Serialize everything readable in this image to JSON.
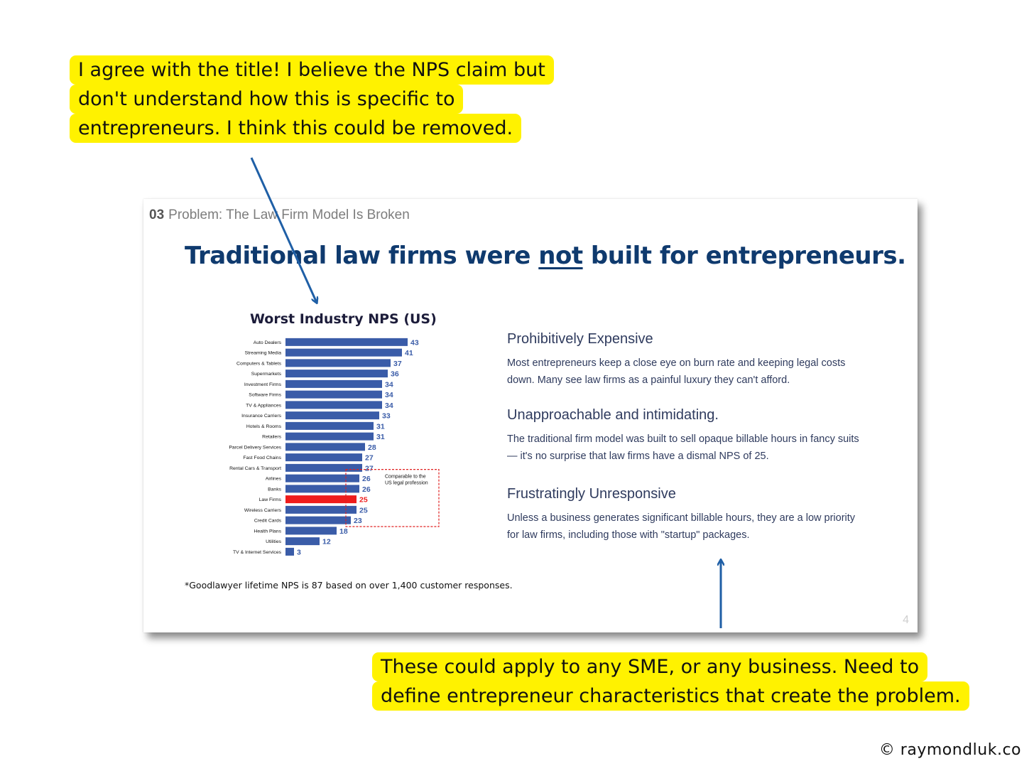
{
  "callouts": {
    "top": [
      "I agree with the title! I believe the NPS claim but",
      "don't understand how this is specific to",
      "entrepreneurs. I think this could be removed."
    ],
    "bottom": [
      "These could apply to any SME, or any business. Need to",
      "define entrepreneur characteristics that create the problem."
    ]
  },
  "slide": {
    "section_number": "03",
    "section_title": "Problem: The Law Firm Model Is Broken",
    "headline_pre": "Traditional law firms were ",
    "headline_emph": "not",
    "headline_post": " built for entrepreneurs.",
    "chart_title": "Worst Industry NPS (US)",
    "footnote": "*Goodlawyer lifetime NPS is 87 based on over 1,400 customer responses.",
    "points": [
      {
        "title": "Prohibitively Expensive",
        "body": "Most entrepreneurs keep a close eye on burn rate and keeping legal costs down. Many see law firms as a painful luxury they can't afford."
      },
      {
        "title": "Unapproachable and intimidating.",
        "body": "The traditional firm model was built to sell opaque billable hours in fancy suits — it's no surprise that law firms have a dismal NPS of 25."
      },
      {
        "title": "Frustratingly Unresponsive",
        "body": "Unless a business generates significant billable hours, they are a low priority for law firms, including those with \"startup\" packages."
      }
    ],
    "page_number": "4"
  },
  "chart_data": {
    "type": "bar",
    "orientation": "horizontal",
    "title": "Worst Industry NPS (US)",
    "categories": [
      "Auto Dealers",
      "Streaming Media",
      "Computers & Tablets",
      "Supermarkets",
      "Investment Firms",
      "Software Firms",
      "TV & Appliances",
      "Insurance Carriers",
      "Hotels & Rooms",
      "Retailers",
      "Parcel Delivery Services",
      "Fast Food Chains",
      "Rental Cars & Transport",
      "Airlines",
      "Banks",
      "Law Firms",
      "Wireless Carriers",
      "Credit Cards",
      "Health Plans",
      "Utilities",
      "TV & Internet Services"
    ],
    "values": [
      43,
      41,
      37,
      36,
      34,
      34,
      34,
      33,
      31,
      31,
      28,
      27,
      27,
      26,
      26,
      25,
      25,
      23,
      18,
      12,
      3
    ],
    "highlight": "Law Firms",
    "annotation": "Comparable to the US legal profession",
    "colors": {
      "bar": "#3a5ca8",
      "highlight": "#ee1c1c",
      "box": "#e02020"
    },
    "xlim": [
      0,
      43
    ],
    "grid": false
  },
  "credit": "© raymondluk.co"
}
